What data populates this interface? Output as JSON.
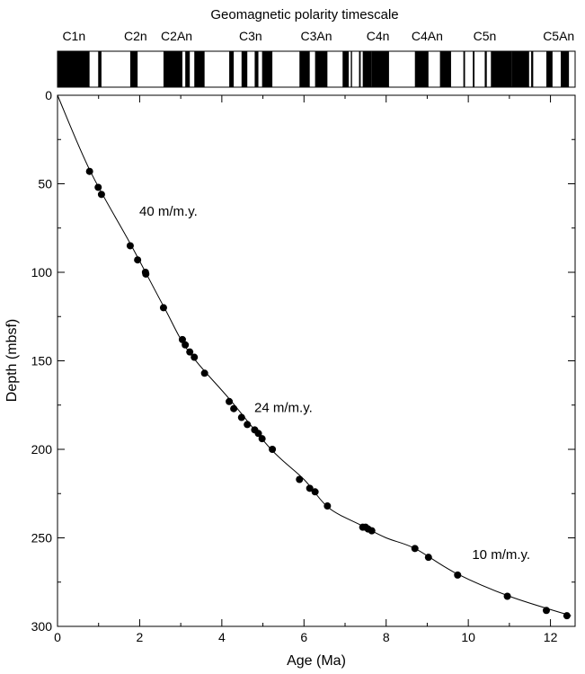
{
  "timescale": {
    "title": "Geomagnetic polarity timescale",
    "chrons": [
      {
        "label": "C1n",
        "age": 0.4
      },
      {
        "label": "C2n",
        "age": 1.9
      },
      {
        "label": "C2An",
        "age": 2.9
      },
      {
        "label": "C3n",
        "age": 4.7
      },
      {
        "label": "C3An",
        "age": 6.3
      },
      {
        "label": "C4n",
        "age": 7.8
      },
      {
        "label": "C4An",
        "age": 9.0
      },
      {
        "label": "C5n",
        "age": 10.4
      },
      {
        "label": "C5An",
        "age": 12.2
      }
    ],
    "normal_intervals": [
      [
        0.0,
        0.78
      ],
      [
        0.99,
        1.07
      ],
      [
        1.77,
        1.95
      ],
      [
        2.58,
        3.04
      ],
      [
        3.11,
        3.22
      ],
      [
        3.33,
        3.58
      ],
      [
        4.18,
        4.29
      ],
      [
        4.48,
        4.62
      ],
      [
        4.8,
        4.89
      ],
      [
        4.98,
        5.23
      ],
      [
        5.89,
        6.14
      ],
      [
        6.27,
        6.57
      ],
      [
        6.94,
        7.09
      ],
      [
        7.14,
        7.17
      ],
      [
        7.34,
        7.38
      ],
      [
        7.43,
        7.65
      ],
      [
        7.65,
        8.07
      ],
      [
        8.7,
        9.03
      ],
      [
        9.31,
        9.58
      ],
      [
        9.88,
        9.92
      ],
      [
        10.11,
        10.15
      ],
      [
        10.4,
        10.45
      ],
      [
        10.55,
        11.05
      ],
      [
        11.05,
        11.48
      ],
      [
        11.53,
        11.58
      ],
      [
        11.9,
        12.05
      ],
      [
        12.25,
        12.45
      ]
    ],
    "xlim": [
      0,
      12.6
    ]
  },
  "chart_data": {
    "type": "line",
    "xlabel": "Age (Ma)",
    "ylabel": "Depth (mbsf)",
    "xlim": [
      0,
      12.6
    ],
    "ylim": [
      0,
      300
    ],
    "y_inverted": true,
    "xticks": [
      0,
      2,
      4,
      6,
      8,
      10,
      12
    ],
    "yticks": [
      0,
      50,
      100,
      150,
      200,
      250,
      300
    ],
    "line": {
      "x": [
        0,
        0.8,
        1.8,
        2.6,
        3.2,
        4.2,
        5.2,
        6.0,
        6.6,
        7.4,
        8.0,
        8.7,
        9.7,
        11.0,
        12.5
      ],
      "y": [
        0,
        43,
        85,
        120,
        145,
        172,
        200,
        217,
        233,
        243,
        250,
        256,
        270,
        283,
        294
      ]
    },
    "points": [
      [
        0.78,
        43
      ],
      [
        0.99,
        52
      ],
      [
        1.07,
        56
      ],
      [
        1.77,
        85
      ],
      [
        1.95,
        93
      ],
      [
        2.14,
        100
      ],
      [
        2.15,
        101
      ],
      [
        2.58,
        120
      ],
      [
        3.04,
        138
      ],
      [
        3.11,
        141
      ],
      [
        3.22,
        145
      ],
      [
        3.33,
        148
      ],
      [
        3.58,
        157
      ],
      [
        4.18,
        173
      ],
      [
        4.29,
        177
      ],
      [
        4.48,
        182
      ],
      [
        4.62,
        186
      ],
      [
        4.8,
        189
      ],
      [
        4.89,
        191
      ],
      [
        4.98,
        194
      ],
      [
        5.23,
        200
      ],
      [
        5.89,
        217
      ],
      [
        6.14,
        222
      ],
      [
        6.27,
        224
      ],
      [
        6.57,
        232
      ],
      [
        7.43,
        244
      ],
      [
        7.5,
        244
      ],
      [
        7.56,
        245
      ],
      [
        7.65,
        246
      ],
      [
        8.7,
        256
      ],
      [
        9.03,
        261
      ],
      [
        9.74,
        271
      ],
      [
        10.95,
        283
      ],
      [
        11.9,
        291
      ],
      [
        12.4,
        294
      ]
    ],
    "annotations": [
      {
        "text": "40 m/m.y.",
        "x": 2.7,
        "y": 68
      },
      {
        "text": "24 m/m.y.",
        "x": 5.5,
        "y": 179
      },
      {
        "text": "10 m/m.y.",
        "x": 10.8,
        "y": 262
      }
    ]
  }
}
